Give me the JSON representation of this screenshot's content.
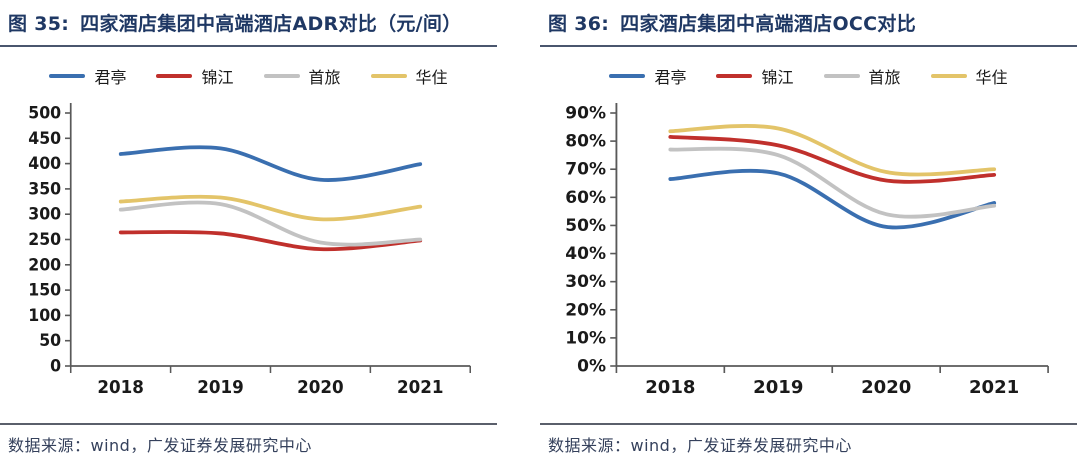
{
  "colors": {
    "title": "#1f3864",
    "axis": "#595959",
    "tick_text": "#1a1a1a",
    "blue": "#3a6fb0",
    "red": "#c0302c",
    "gray": "#c2c2c2",
    "yellow": "#e3c469"
  },
  "panels": [
    {
      "figure_label": "图 35:",
      "title": "四家酒店集团中高端酒店ADR对比（元/间）",
      "source": "数据来源：wind，广发证券发展研究中心"
    },
    {
      "figure_label": "图 36:",
      "title": "四家酒店集团中高端酒店OCC对比",
      "source": "数据来源：wind，广发证券发展研究中心"
    }
  ],
  "chart_data": [
    {
      "type": "line",
      "title": "四家酒店集团中高端酒店ADR对比（元/间）",
      "categories": [
        "2018",
        "2019",
        "2020",
        "2021"
      ],
      "series": [
        {
          "id": "junting",
          "name": "君亭",
          "color": "#3a6fb0",
          "values": [
            419,
            430,
            368,
            399
          ]
        },
        {
          "id": "jinjiang",
          "name": "锦江",
          "color": "#c0302c",
          "values": [
            264,
            262,
            231,
            248
          ]
        },
        {
          "id": "shoulv",
          "name": "首旅",
          "color": "#c2c2c2",
          "values": [
            309,
            320,
            244,
            250
          ]
        },
        {
          "id": "huazhu",
          "name": "华住",
          "color": "#e3c469",
          "values": [
            325,
            333,
            290,
            315
          ]
        }
      ],
      "xlabel": "",
      "ylabel": "",
      "ylim": [
        0,
        500
      ],
      "ytick_step": 50,
      "ytick_suffix": "",
      "grid": false,
      "legend_position": "top",
      "smooth": true
    },
    {
      "type": "line",
      "title": "四家酒店集团中高端酒店OCC对比",
      "categories": [
        "2018",
        "2019",
        "2020",
        "2021"
      ],
      "series": [
        {
          "id": "junting",
          "name": "君亭",
          "color": "#3a6fb0",
          "values": [
            66.5,
            68.5,
            49.5,
            58
          ]
        },
        {
          "id": "jinjiang",
          "name": "锦江",
          "color": "#c0302c",
          "values": [
            81.5,
            78.5,
            66,
            68
          ]
        },
        {
          "id": "shoulv",
          "name": "首旅",
          "color": "#c2c2c2",
          "values": [
            77,
            75,
            54,
            57
          ]
        },
        {
          "id": "huazhu",
          "name": "华住",
          "color": "#e3c469",
          "values": [
            83.5,
            84.5,
            69,
            70
          ]
        }
      ],
      "xlabel": "",
      "ylabel": "",
      "ylim": [
        0,
        90
      ],
      "ytick_step": 10,
      "ytick_suffix": "%",
      "grid": false,
      "legend_position": "top",
      "smooth": true
    }
  ]
}
